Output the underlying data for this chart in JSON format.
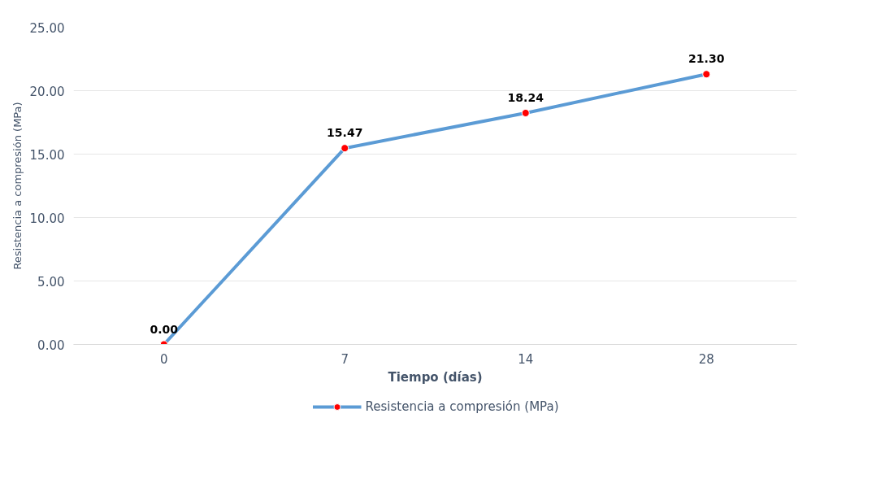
{
  "chart_data": {
    "type": "line",
    "xlabel": "Tiempo (días)",
    "ylabel": "Resistencia a compresión (MPa)",
    "categories": [
      "0",
      "7",
      "14",
      "28"
    ],
    "series": [
      {
        "name": "Resistencia a compresión (MPa)",
        "color": "#5b9bd5",
        "colors": [
          "#ff0000",
          "#ff0000",
          "#ff0000",
          "#ff0000"
        ],
        "values": [
          0.0,
          15.47,
          18.24,
          21.3
        ],
        "value_labels": [
          "0.00",
          "15.47",
          "18.24",
          "21.30"
        ]
      }
    ],
    "ylim": [
      0,
      25
    ],
    "yticks": [
      {
        "value": 0,
        "label": "0.00"
      },
      {
        "value": 5,
        "label": "5.00"
      },
      {
        "value": 10,
        "label": "10.00"
      },
      {
        "value": 15,
        "label": "15.00"
      },
      {
        "value": 20,
        "label": "20.00"
      },
      {
        "value": 25,
        "label": "25.00"
      }
    ],
    "grid": "y",
    "legend": "bottom",
    "marker": "circle",
    "line_style": "solid"
  }
}
